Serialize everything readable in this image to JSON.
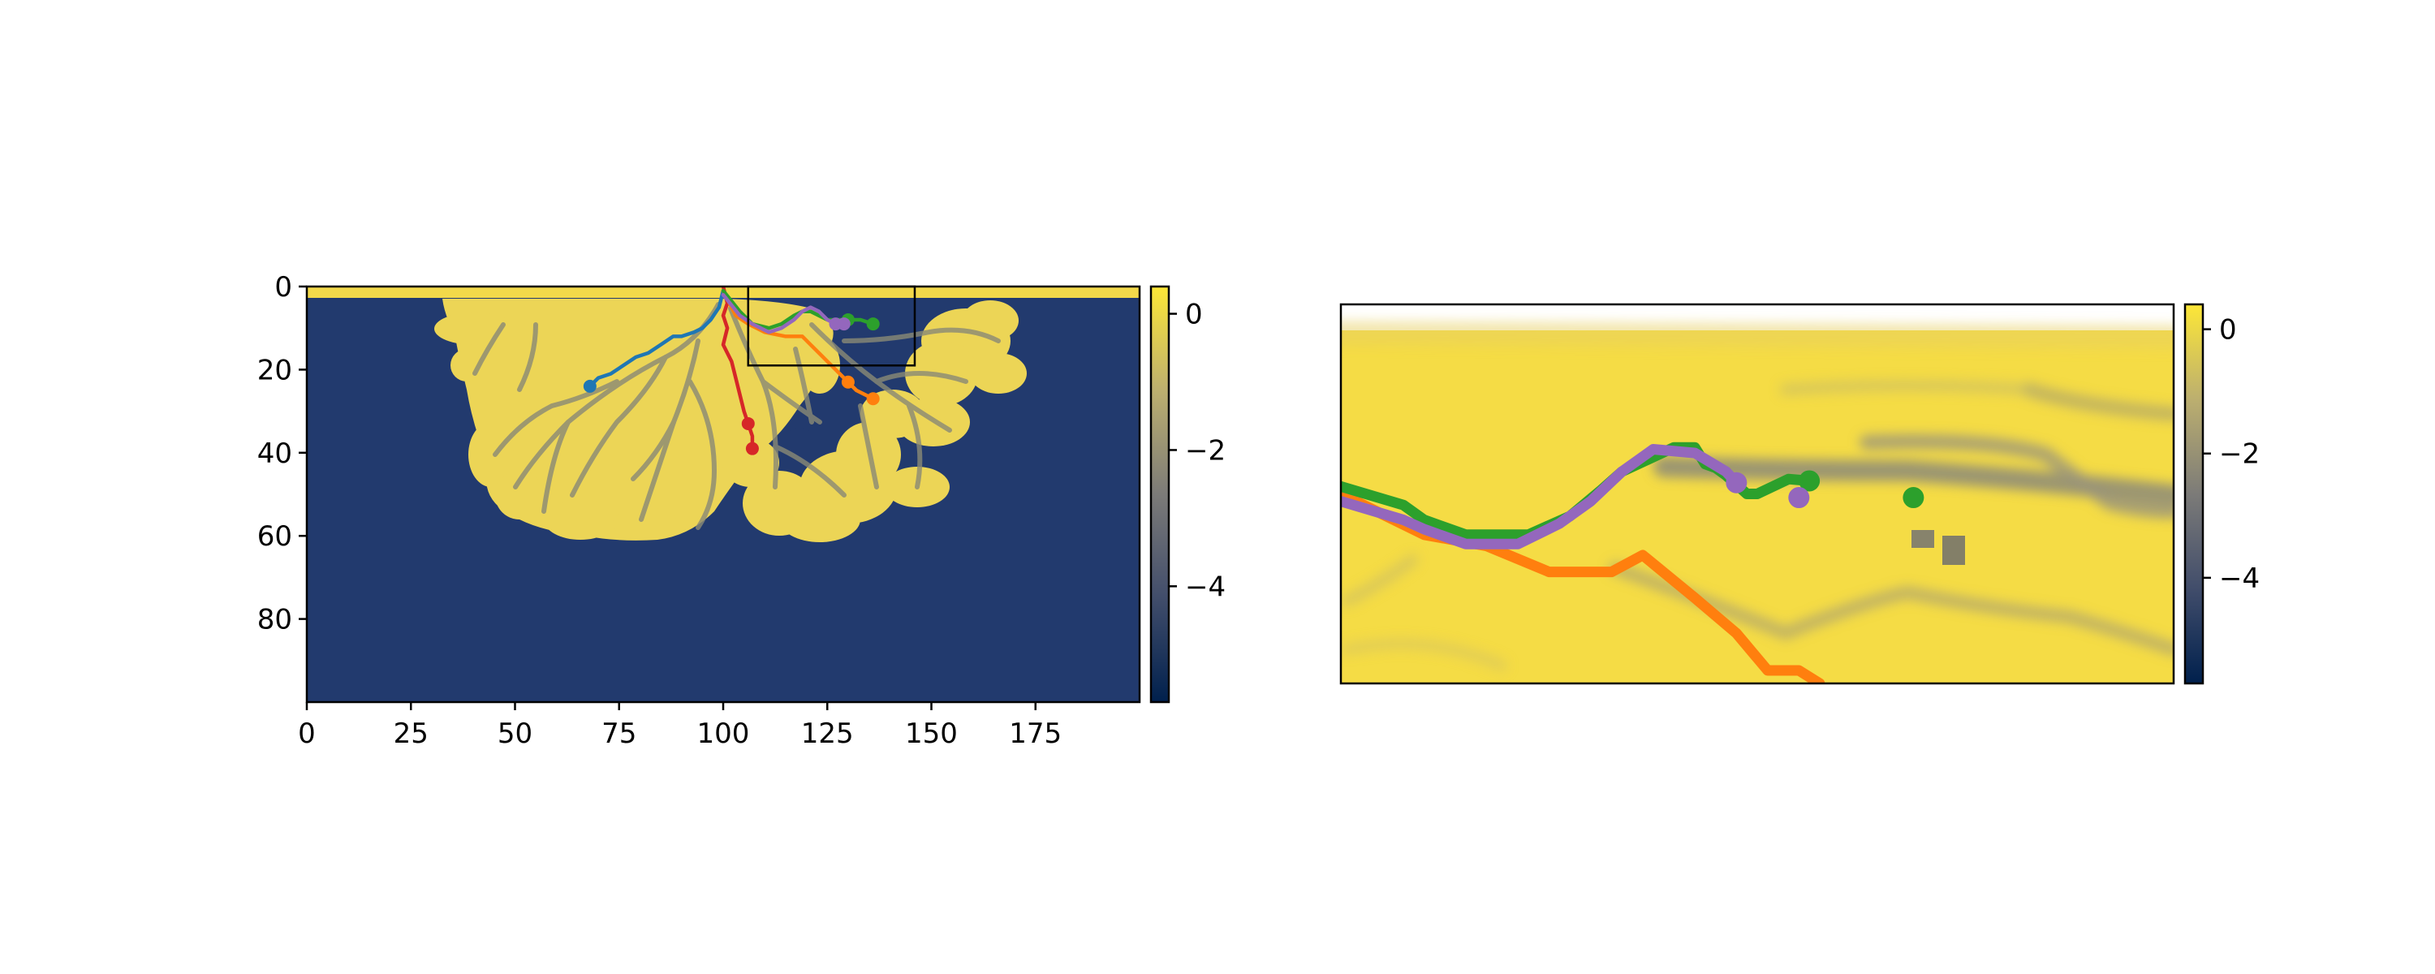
{
  "figure": {
    "colormap": [
      "#00204d",
      "#414d6b",
      "#7c7b78",
      "#bcaf6f",
      "#fde737"
    ],
    "mask_color": "#223a6e"
  },
  "chart_data": [
    {
      "type": "heatmap",
      "title": "",
      "xlabel": "",
      "ylabel": "",
      "xlim": [
        0,
        200
      ],
      "ylim": [
        100,
        0
      ],
      "x_ticks": [
        0,
        25,
        50,
        75,
        100,
        125,
        150,
        175
      ],
      "y_ticks": [
        0,
        20,
        40,
        60,
        80
      ],
      "colorbar": {
        "range": [
          -5.7,
          0.4
        ],
        "ticks": [
          0,
          -2,
          -4
        ],
        "tick_labels": [
          "0",
          "−2",
          "−4"
        ]
      },
      "inset_box": {
        "x": [
          106,
          146
        ],
        "y": [
          0,
          19
        ]
      },
      "series": [
        {
          "color": "#1f77b4",
          "points": [
            [
              100,
              1
            ],
            [
              99,
              5
            ],
            [
              97,
              8
            ],
            [
              95,
              10
            ],
            [
              93,
              11
            ],
            [
              90,
              12
            ],
            [
              88,
              12
            ],
            [
              85,
              14
            ],
            [
              82,
              16
            ],
            [
              79,
              17
            ],
            [
              76,
              19
            ],
            [
              73,
              21
            ],
            [
              70,
              22
            ],
            [
              68,
              24
            ]
          ],
          "markers": [
            [
              68,
              24
            ]
          ]
        },
        {
          "color": "#d62728",
          "points": [
            [
              100,
              0
            ],
            [
              101,
              4
            ],
            [
              100,
              7
            ],
            [
              101,
              10
            ],
            [
              100,
              14
            ],
            [
              102,
              18
            ],
            [
              103,
              22
            ],
            [
              104,
              26
            ],
            [
              105,
              30
            ],
            [
              106,
              33
            ],
            [
              107,
              36
            ],
            [
              107,
              39
            ]
          ],
          "markers": [
            [
              106,
              33
            ],
            [
              107,
              39
            ]
          ]
        },
        {
          "color": "#ff7f0e",
          "points": [
            [
              100,
              1
            ],
            [
              103,
              7
            ],
            [
              106,
              9
            ],
            [
              110,
              11
            ],
            [
              115,
              12
            ],
            [
              119,
              12
            ],
            [
              121,
              14
            ],
            [
              124,
              17
            ],
            [
              127,
              20
            ],
            [
              130,
              23
            ],
            [
              132,
              25
            ],
            [
              136,
              27
            ]
          ],
          "markers": [
            [
              130,
              23
            ],
            [
              136,
              27
            ]
          ]
        },
        {
          "color": "#2ca02c",
          "points": [
            [
              100,
              1
            ],
            [
              104,
              6
            ],
            [
              107,
              9
            ],
            [
              111,
              10
            ],
            [
              114,
              9
            ],
            [
              117,
              7
            ],
            [
              119,
              6
            ],
            [
              121,
              6
            ],
            [
              123,
              7
            ],
            [
              125,
              8
            ],
            [
              127,
              8
            ],
            [
              130,
              8
            ],
            [
              133,
              8
            ],
            [
              136,
              9
            ]
          ],
          "markers": [
            [
              130,
              8
            ],
            [
              136,
              9
            ]
          ]
        },
        {
          "color": "#9467bd",
          "points": [
            [
              100,
              2
            ],
            [
              104,
              7
            ],
            [
              107,
              9
            ],
            [
              111,
              11
            ],
            [
              114,
              10
            ],
            [
              117,
              8
            ],
            [
              119,
              6
            ],
            [
              121,
              5
            ],
            [
              123,
              6
            ],
            [
              125,
              8
            ],
            [
              127,
              9
            ],
            [
              129,
              9
            ]
          ],
          "markers": [
            [
              127,
              9
            ],
            [
              129,
              9
            ]
          ]
        }
      ]
    },
    {
      "type": "heatmap",
      "title": "",
      "xlabel": "",
      "ylabel": "",
      "xlim": [
        106,
        146
      ],
      "ylim": [
        19,
        0
      ],
      "colorbar": {
        "range": [
          -5.7,
          0.4
        ],
        "ticks": [
          0,
          -2,
          -4
        ],
        "tick_labels": [
          "0",
          "−2",
          "−4"
        ]
      },
      "series": [
        {
          "color": "#ff7f0e",
          "points": [
            [
              106,
              8.8
            ],
            [
              110,
              11
            ],
            [
              113,
              11.6
            ],
            [
              116,
              13
            ],
            [
              119,
              13
            ],
            [
              120.5,
              12.1
            ],
            [
              123,
              14.4
            ],
            [
              125,
              16.3
            ],
            [
              126.5,
              18.3
            ],
            [
              128,
              18.3
            ],
            [
              129,
              19
            ]
          ],
          "markers": []
        },
        {
          "color": "#2ca02c",
          "points": [
            [
              106,
              8.4
            ],
            [
              109,
              9.4
            ],
            [
              110,
              10.2
            ],
            [
              112,
              11
            ],
            [
              115,
              11
            ],
            [
              117,
              10
            ],
            [
              118.5,
              8.6
            ],
            [
              119.5,
              7.6
            ],
            [
              122,
              6.3
            ],
            [
              123,
              6.3
            ],
            [
              123.5,
              7.2
            ],
            [
              124,
              7.4
            ],
            [
              124.5,
              7.8
            ],
            [
              125.5,
              8.8
            ],
            [
              126,
              8.8
            ],
            [
              127.5,
              8.0
            ],
            [
              128.5,
              8.1
            ]
          ],
          "markers": [
            [
              128.5,
              8.1
            ],
            [
              133.5,
              9.0
            ]
          ]
        },
        {
          "color": "#9467bd",
          "points": [
            [
              106,
              9.2
            ],
            [
              109,
              10.2
            ],
            [
              110,
              10.7
            ],
            [
              112,
              11.5
            ],
            [
              114.5,
              11.5
            ],
            [
              116.5,
              10.4
            ],
            [
              118,
              9.2
            ],
            [
              119.5,
              7.6
            ],
            [
              121,
              6.4
            ],
            [
              123,
              6.6
            ],
            [
              124.5,
              7.6
            ],
            [
              125,
              8.2
            ]
          ],
          "markers": [
            [
              125,
              8.2
            ],
            [
              128,
              9.0
            ]
          ]
        }
      ]
    }
  ]
}
